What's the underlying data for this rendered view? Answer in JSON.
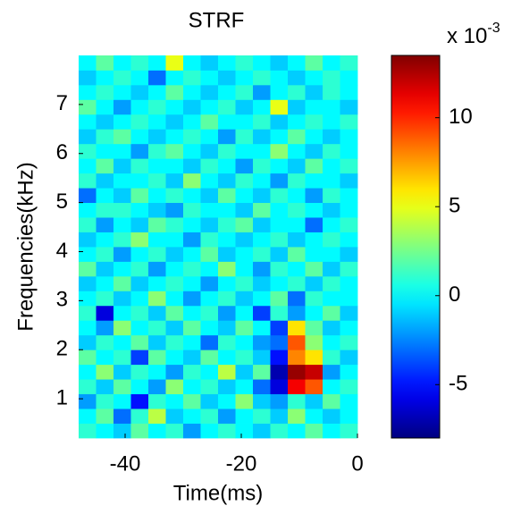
{
  "chart_data": {
    "type": "heatmap",
    "title": "STRF",
    "x_label": "Time(ms)",
    "y_label": "Frequencies(kHz)",
    "colormap": "jet",
    "colorbar_multiplier": "x 10",
    "colorbar_exponent": "-3",
    "xlim": [
      -48,
      0
    ],
    "xticks": [
      -40,
      -20,
      0
    ],
    "ylim": [
      0.2,
      8.0
    ],
    "yticks": [
      1,
      2,
      3,
      4,
      5,
      6,
      7
    ],
    "clim": [
      -8,
      13.5
    ],
    "cticks": [
      -5,
      0,
      5,
      10
    ],
    "x": [
      -46.5,
      -43.5,
      -40.5,
      -37.5,
      -34.5,
      -31.5,
      -28.5,
      -25.5,
      -22.5,
      -19.5,
      -16.5,
      -13.5,
      -10.5,
      -7.5,
      -4.5,
      -1.5
    ],
    "y": [
      0.35,
      0.65,
      0.95,
      1.25,
      1.55,
      1.85,
      2.15,
      2.45,
      2.75,
      3.05,
      3.35,
      3.65,
      3.95,
      4.25,
      4.55,
      4.85,
      5.15,
      5.45,
      5.75,
      6.05,
      6.35,
      6.65,
      6.95,
      7.25,
      7.55,
      7.85
    ],
    "values": [
      [
        1,
        0,
        -1,
        2,
        0,
        1,
        -2,
        0,
        1,
        0,
        -1,
        1,
        0,
        2,
        0,
        1
      ],
      [
        0,
        2,
        -3,
        1,
        4,
        -1,
        0,
        1,
        -2,
        0,
        1,
        -1,
        3,
        0,
        -1,
        0
      ],
      [
        -2,
        1,
        0,
        -5,
        1,
        0,
        2,
        -1,
        0,
        3,
        -1,
        -2,
        1,
        -1,
        2,
        0
      ],
      [
        1,
        -1,
        2,
        0,
        -2,
        3,
        0,
        1,
        -1,
        0,
        -3,
        -6,
        11,
        9,
        0,
        1
      ],
      [
        0,
        3,
        -1,
        1,
        0,
        -2,
        1,
        0,
        4,
        -1,
        2,
        -7,
        13,
        12,
        -2,
        0
      ],
      [
        2,
        0,
        1,
        -4,
        2,
        0,
        -1,
        2,
        0,
        1,
        -1,
        -5,
        8,
        6,
        1,
        -1
      ],
      [
        -1,
        1,
        0,
        2,
        -1,
        1,
        0,
        -3,
        1,
        0,
        -2,
        -3,
        9,
        3,
        0,
        1
      ],
      [
        0,
        -2,
        3,
        0,
        1,
        -1,
        2,
        0,
        -1,
        2,
        0,
        -4,
        6,
        2,
        -1,
        0
      ],
      [
        1,
        -6,
        0,
        1,
        -1,
        2,
        0,
        1,
        -2,
        0,
        -4,
        1,
        -2,
        0,
        2,
        -1
      ],
      [
        0,
        1,
        -1,
        0,
        3,
        0,
        -2,
        0,
        1,
        -1,
        0,
        2,
        -3,
        1,
        0,
        0
      ],
      [
        -1,
        0,
        2,
        -1,
        0,
        1,
        0,
        -2,
        0,
        1,
        -1,
        0,
        1,
        -1,
        1,
        0
      ],
      [
        2,
        -1,
        0,
        1,
        -2,
        0,
        1,
        0,
        3,
        0,
        -2,
        1,
        0,
        2,
        -1,
        1
      ],
      [
        0,
        1,
        -2,
        0,
        1,
        -1,
        0,
        2,
        -1,
        0,
        1,
        -1,
        2,
        0,
        0,
        -1
      ],
      [
        -1,
        0,
        1,
        3,
        0,
        0,
        -2,
        1,
        0,
        -1,
        0,
        1,
        -1,
        0,
        1,
        0
      ],
      [
        1,
        -2,
        0,
        -1,
        2,
        1,
        0,
        -1,
        1,
        2,
        -1,
        0,
        0,
        -3,
        0,
        1
      ],
      [
        0,
        1,
        1,
        0,
        -1,
        -2,
        1,
        0,
        0,
        -1,
        2,
        0,
        1,
        0,
        -1,
        0
      ],
      [
        -3,
        0,
        -1,
        2,
        0,
        1,
        0,
        -1,
        2,
        0,
        -1,
        1,
        0,
        -2,
        1,
        0
      ],
      [
        1,
        -1,
        0,
        0,
        1,
        -1,
        3,
        0,
        -1,
        1,
        0,
        -2,
        1,
        0,
        0,
        -1
      ],
      [
        0,
        2,
        -1,
        1,
        0,
        0,
        -1,
        1,
        0,
        -2,
        1,
        0,
        -1,
        2,
        0,
        1
      ],
      [
        1,
        0,
        0,
        -2,
        1,
        2,
        0,
        -1,
        1,
        0,
        0,
        3,
        0,
        -1,
        1,
        0
      ],
      [
        -1,
        1,
        2,
        0,
        -1,
        0,
        1,
        0,
        -2,
        1,
        -1,
        0,
        2,
        0,
        -1,
        0
      ],
      [
        0,
        -1,
        0,
        1,
        0,
        -1,
        0,
        2,
        0,
        0,
        1,
        -1,
        0,
        1,
        0,
        1
      ],
      [
        2,
        0,
        -2,
        0,
        1,
        0,
        -1,
        0,
        1,
        -1,
        0,
        5,
        -1,
        0,
        0,
        -1
      ],
      [
        0,
        1,
        0,
        -1,
        0,
        2,
        0,
        -1,
        0,
        1,
        -2,
        0,
        1,
        -1,
        1,
        0
      ],
      [
        -1,
        0,
        1,
        0,
        -3,
        0,
        1,
        0,
        -1,
        0,
        1,
        0,
        -1,
        0,
        1,
        0
      ],
      [
        0,
        2,
        0,
        1,
        0,
        5,
        0,
        -1,
        0,
        1,
        0,
        -1,
        0,
        2,
        0,
        1
      ]
    ]
  }
}
